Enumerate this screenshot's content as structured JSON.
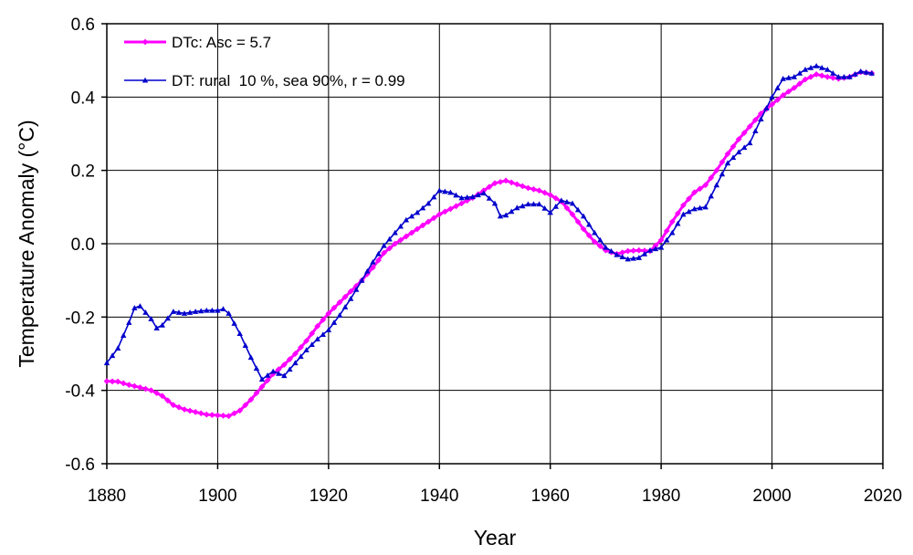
{
  "chart_data": {
    "type": "line",
    "xlabel": "Year",
    "ylabel": "Temperature Anomaly (°C)",
    "xlim": [
      1880,
      2020
    ],
    "ylim": [
      -0.6,
      0.6
    ],
    "x_ticks": [
      1880,
      1900,
      1920,
      1940,
      1960,
      1980,
      2000,
      2020
    ],
    "y_ticks": [
      -0.6,
      -0.4,
      -0.2,
      0.0,
      0.2,
      0.4,
      0.6
    ],
    "y_tick_labels": [
      "-0.6",
      "-0.4",
      "-0.2",
      "0.0",
      "0.2",
      "0.4",
      "0.6"
    ],
    "grid": true,
    "legend_position": "top-left",
    "series": [
      {
        "name": "DTc: Asc = 5.7",
        "color": "#ff00ff",
        "marker": "diamond",
        "points": [
          [
            1880,
            -0.375
          ],
          [
            1882,
            -0.376
          ],
          [
            1884,
            -0.385
          ],
          [
            1886,
            -0.392
          ],
          [
            1888,
            -0.4
          ],
          [
            1890,
            -0.415
          ],
          [
            1892,
            -0.44
          ],
          [
            1894,
            -0.452
          ],
          [
            1896,
            -0.459
          ],
          [
            1898,
            -0.466
          ],
          [
            1900,
            -0.468
          ],
          [
            1902,
            -0.47
          ],
          [
            1904,
            -0.455
          ],
          [
            1906,
            -0.425
          ],
          [
            1908,
            -0.39
          ],
          [
            1910,
            -0.355
          ],
          [
            1912,
            -0.33
          ],
          [
            1914,
            -0.3
          ],
          [
            1916,
            -0.265
          ],
          [
            1918,
            -0.225
          ],
          [
            1920,
            -0.19
          ],
          [
            1922,
            -0.16
          ],
          [
            1924,
            -0.13
          ],
          [
            1926,
            -0.1
          ],
          [
            1928,
            -0.065
          ],
          [
            1930,
            -0.025
          ],
          [
            1932,
            0.0
          ],
          [
            1934,
            0.02
          ],
          [
            1936,
            0.04
          ],
          [
            1938,
            0.06
          ],
          [
            1940,
            0.08
          ],
          [
            1942,
            0.095
          ],
          [
            1944,
            0.11
          ],
          [
            1946,
            0.125
          ],
          [
            1948,
            0.145
          ],
          [
            1950,
            0.165
          ],
          [
            1952,
            0.172
          ],
          [
            1954,
            0.162
          ],
          [
            1956,
            0.152
          ],
          [
            1958,
            0.145
          ],
          [
            1960,
            0.133
          ],
          [
            1962,
            0.115
          ],
          [
            1964,
            0.08
          ],
          [
            1966,
            0.04
          ],
          [
            1968,
            0.005
          ],
          [
            1970,
            -0.018
          ],
          [
            1972,
            -0.028
          ],
          [
            1974,
            -0.02
          ],
          [
            1976,
            -0.018
          ],
          [
            1978,
            -0.02
          ],
          [
            1980,
            0.01
          ],
          [
            1982,
            0.06
          ],
          [
            1984,
            0.105
          ],
          [
            1986,
            0.14
          ],
          [
            1988,
            0.16
          ],
          [
            1990,
            0.2
          ],
          [
            1992,
            0.245
          ],
          [
            1994,
            0.285
          ],
          [
            1996,
            0.32
          ],
          [
            1998,
            0.355
          ],
          [
            2000,
            0.38
          ],
          [
            2002,
            0.405
          ],
          [
            2004,
            0.425
          ],
          [
            2006,
            0.448
          ],
          [
            2008,
            0.462
          ],
          [
            2010,
            0.455
          ],
          [
            2012,
            0.45
          ],
          [
            2014,
            0.455
          ],
          [
            2016,
            0.468
          ],
          [
            2018,
            0.465
          ]
        ]
      },
      {
        "name": "DT: rural  10 %, sea 90%, r = 0.99",
        "color": "#0000cc",
        "marker": "triangle",
        "points": [
          [
            1880,
            -0.325
          ],
          [
            1882,
            -0.285
          ],
          [
            1884,
            -0.215
          ],
          [
            1885,
            -0.175
          ],
          [
            1886,
            -0.17
          ],
          [
            1888,
            -0.205
          ],
          [
            1889,
            -0.23
          ],
          [
            1890,
            -0.222
          ],
          [
            1892,
            -0.185
          ],
          [
            1894,
            -0.19
          ],
          [
            1896,
            -0.185
          ],
          [
            1898,
            -0.182
          ],
          [
            1900,
            -0.182
          ],
          [
            1901,
            -0.178
          ],
          [
            1902,
            -0.19
          ],
          [
            1904,
            -0.245
          ],
          [
            1906,
            -0.31
          ],
          [
            1908,
            -0.37
          ],
          [
            1910,
            -0.348
          ],
          [
            1912,
            -0.36
          ],
          [
            1914,
            -0.325
          ],
          [
            1916,
            -0.29
          ],
          [
            1918,
            -0.26
          ],
          [
            1920,
            -0.235
          ],
          [
            1922,
            -0.195
          ],
          [
            1924,
            -0.15
          ],
          [
            1926,
            -0.1
          ],
          [
            1928,
            -0.05
          ],
          [
            1930,
            -0.005
          ],
          [
            1932,
            0.03
          ],
          [
            1934,
            0.065
          ],
          [
            1936,
            0.085
          ],
          [
            1938,
            0.11
          ],
          [
            1940,
            0.145
          ],
          [
            1942,
            0.14
          ],
          [
            1944,
            0.125
          ],
          [
            1946,
            0.128
          ],
          [
            1948,
            0.138
          ],
          [
            1950,
            0.11
          ],
          [
            1951,
            0.075
          ],
          [
            1952,
            0.078
          ],
          [
            1954,
            0.098
          ],
          [
            1956,
            0.108
          ],
          [
            1958,
            0.108
          ],
          [
            1960,
            0.085
          ],
          [
            1962,
            0.118
          ],
          [
            1964,
            0.11
          ],
          [
            1966,
            0.075
          ],
          [
            1968,
            0.03
          ],
          [
            1970,
            -0.01
          ],
          [
            1972,
            -0.03
          ],
          [
            1974,
            -0.042
          ],
          [
            1976,
            -0.038
          ],
          [
            1978,
            -0.018
          ],
          [
            1980,
            -0.01
          ],
          [
            1982,
            0.03
          ],
          [
            1984,
            0.08
          ],
          [
            1986,
            0.095
          ],
          [
            1988,
            0.1
          ],
          [
            1990,
            0.16
          ],
          [
            1992,
            0.22
          ],
          [
            1994,
            0.25
          ],
          [
            1996,
            0.275
          ],
          [
            1998,
            0.34
          ],
          [
            2000,
            0.4
          ],
          [
            2002,
            0.45
          ],
          [
            2004,
            0.455
          ],
          [
            2006,
            0.475
          ],
          [
            2008,
            0.485
          ],
          [
            2010,
            0.475
          ],
          [
            2012,
            0.455
          ],
          [
            2014,
            0.455
          ],
          [
            2016,
            0.47
          ],
          [
            2018,
            0.465
          ]
        ]
      }
    ]
  }
}
